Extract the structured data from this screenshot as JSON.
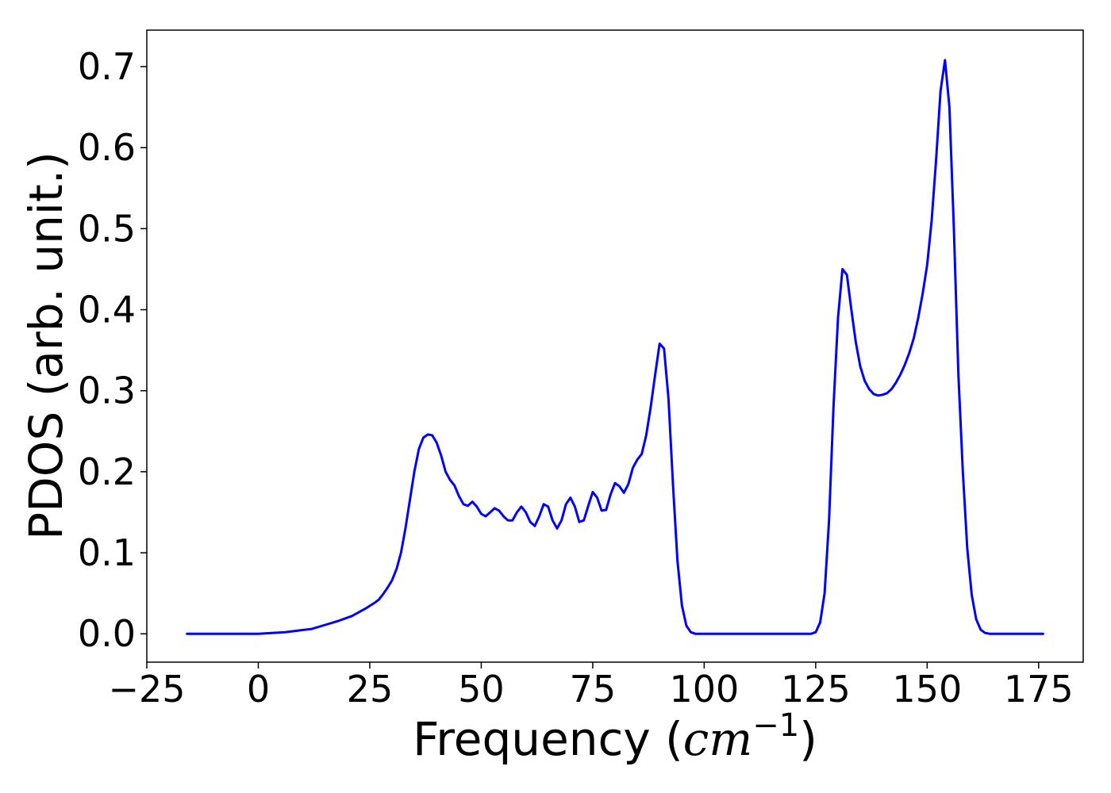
{
  "chart_data": {
    "type": "line",
    "title": "",
    "xlabel_text": "Frequency (",
    "xlabel_math": "cm",
    "xlabel_sup": "−1",
    "xlabel_close": ")",
    "ylabel": "PDOS (arb. unit.)",
    "xlim": [
      -25,
      185
    ],
    "ylim": [
      -0.035,
      0.745
    ],
    "xticks": [
      -25,
      0,
      25,
      50,
      75,
      100,
      125,
      150,
      175
    ],
    "xtick_labels": [
      "−25",
      "0",
      "25",
      "50",
      "75",
      "100",
      "125",
      "150",
      "175"
    ],
    "yticks": [
      0.0,
      0.1,
      0.2,
      0.3,
      0.4,
      0.5,
      0.6,
      0.7
    ],
    "ytick_labels": [
      "0.0",
      "0.1",
      "0.2",
      "0.3",
      "0.4",
      "0.5",
      "0.6",
      "0.7"
    ],
    "grid": false,
    "series": [
      {
        "color": "#0000ff",
        "x": [
          -16,
          -10,
          -5,
          0,
          3,
          6,
          9,
          12,
          15,
          18,
          21,
          24,
          26,
          27,
          28,
          29,
          30,
          31,
          32,
          33,
          34,
          35,
          36,
          37,
          38,
          39,
          40,
          41,
          42,
          43,
          44,
          45,
          46,
          47,
          48,
          49,
          50,
          51,
          52,
          53,
          54,
          55,
          56,
          57,
          58,
          59,
          60,
          61,
          62,
          63,
          64,
          65,
          66,
          67,
          68,
          69,
          70,
          71,
          72,
          73,
          74,
          75,
          76,
          77,
          78,
          79,
          80,
          81,
          82,
          83,
          84,
          85,
          86,
          87,
          88,
          89,
          90,
          91,
          92,
          93,
          94,
          95,
          96,
          97,
          98,
          100,
          110,
          120,
          124,
          125,
          126,
          127,
          128,
          129,
          130,
          131,
          132,
          133,
          134,
          135,
          136,
          137,
          138,
          139,
          140,
          141,
          142,
          143,
          144,
          145,
          146,
          147,
          148,
          149,
          150,
          151,
          152,
          153,
          154,
          155,
          156,
          157,
          158,
          159,
          160,
          161,
          162,
          163,
          164,
          165,
          170,
          176
        ],
        "y": [
          0.0,
          0.0,
          0.0,
          0.0,
          0.001,
          0.002,
          0.004,
          0.006,
          0.011,
          0.016,
          0.022,
          0.031,
          0.038,
          0.042,
          0.049,
          0.057,
          0.066,
          0.08,
          0.1,
          0.13,
          0.165,
          0.2,
          0.228,
          0.242,
          0.246,
          0.245,
          0.236,
          0.22,
          0.2,
          0.19,
          0.183,
          0.17,
          0.16,
          0.158,
          0.163,
          0.157,
          0.148,
          0.145,
          0.15,
          0.155,
          0.152,
          0.145,
          0.14,
          0.14,
          0.15,
          0.157,
          0.15,
          0.138,
          0.133,
          0.145,
          0.16,
          0.157,
          0.14,
          0.13,
          0.14,
          0.16,
          0.168,
          0.157,
          0.138,
          0.14,
          0.158,
          0.175,
          0.168,
          0.152,
          0.153,
          0.172,
          0.186,
          0.182,
          0.174,
          0.185,
          0.205,
          0.215,
          0.222,
          0.245,
          0.28,
          0.32,
          0.358,
          0.352,
          0.29,
          0.185,
          0.09,
          0.035,
          0.01,
          0.002,
          0.0,
          0.0,
          0.0,
          0.0,
          0.0,
          0.002,
          0.014,
          0.05,
          0.14,
          0.28,
          0.39,
          0.45,
          0.443,
          0.4,
          0.36,
          0.33,
          0.312,
          0.302,
          0.296,
          0.294,
          0.295,
          0.297,
          0.302,
          0.31,
          0.32,
          0.332,
          0.347,
          0.365,
          0.39,
          0.42,
          0.455,
          0.51,
          0.585,
          0.67,
          0.708,
          0.65,
          0.5,
          0.32,
          0.2,
          0.105,
          0.048,
          0.018,
          0.005,
          0.001,
          0.0,
          0.0,
          0.0,
          0.0
        ]
      }
    ]
  }
}
